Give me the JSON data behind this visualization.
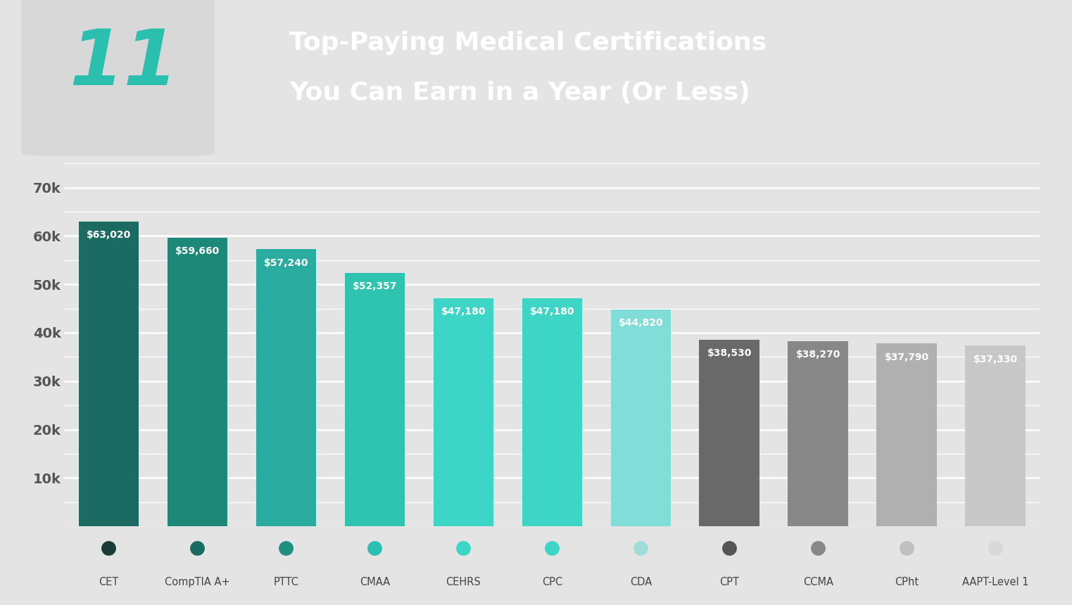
{
  "categories": [
    "CET",
    "CompTIA A+",
    "PTTC",
    "CMAA",
    "CEHRS",
    "CPC",
    "CDA",
    "CPT",
    "CCMA",
    "CPht",
    "AAPT-Level 1"
  ],
  "values": [
    63020,
    59660,
    57240,
    52357,
    47180,
    47180,
    44820,
    38530,
    38270,
    37790,
    37330
  ],
  "bar_colors": [
    "#1b6b62",
    "#1e8878",
    "#2aada0",
    "#2ec4b0",
    "#3dd5c5",
    "#3dd5c5",
    "#80ddd8",
    "#696969",
    "#888888",
    "#b0b0b0",
    "#c8c8c8"
  ],
  "dot_colors": [
    "#1a3d38",
    "#1a6b62",
    "#1e9080",
    "#2abfb0",
    "#3dd5c5",
    "#3dd5c5",
    "#a0ddd8",
    "#555555",
    "#888888",
    "#c0c0c0",
    "#d8d8d8"
  ],
  "value_labels": [
    "$63,020",
    "$59,660",
    "$57,240",
    "$52,357",
    "$47,180",
    "$47,180",
    "$44,820",
    "$38,530",
    "$38,270",
    "$37,790",
    "$37,330"
  ],
  "title_line1": "Top-Paying Medical Certifications",
  "title_line2": "You Can Earn in a Year (Or Less)",
  "header_bg_color": "#2abfaf",
  "chart_bg_color": "#e4e4e4",
  "ylim": [
    0,
    75000
  ],
  "yticks": [
    10000,
    20000,
    30000,
    40000,
    50000,
    60000,
    70000
  ],
  "ytick_labels": [
    "10k",
    "20k",
    "30k",
    "40k",
    "50k",
    "60k",
    "70k"
  ],
  "grid_color": "#ffffff",
  "minor_grid_color": "#f0f0f0"
}
